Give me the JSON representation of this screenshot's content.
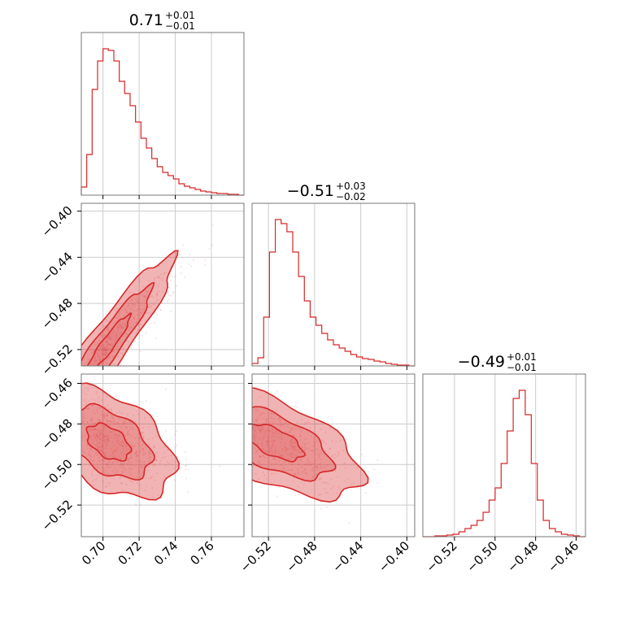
{
  "chart_data": {
    "type": "corner",
    "color": "#d62728",
    "grid": true,
    "parameters": [
      {
        "title_value": "0.71",
        "title_plus": "+0.01",
        "title_minus": "−0.01",
        "range": [
          0.688,
          0.778
        ]
      },
      {
        "title_value": "−0.51",
        "title_plus": "+0.03",
        "title_minus": "−0.02",
        "range": [
          -0.5342,
          -0.3932
        ]
      },
      {
        "title_value": "−0.49",
        "title_plus": "+0.01",
        "title_minus": "−0.01",
        "range": [
          -0.5356,
          -0.4554
        ]
      }
    ],
    "ticks": [
      {
        "values": [
          0.7,
          0.72,
          0.74,
          0.76
        ],
        "labels": [
          "0.70",
          "0.72",
          "0.74",
          "0.76"
        ]
      },
      {
        "values": [
          -0.52,
          -0.48,
          -0.44,
          -0.4
        ],
        "labels": [
          "−0.52",
          "−0.48",
          "−0.44",
          "−0.40"
        ]
      },
      {
        "values": [
          -0.52,
          -0.5,
          -0.48,
          -0.46
        ],
        "labels": [
          "−0.52",
          "−0.50",
          "−0.48",
          "−0.46"
        ]
      }
    ],
    "histograms": [
      {
        "x": [
          0.688,
          0.691,
          0.694,
          0.697,
          0.7,
          0.703,
          0.706,
          0.709,
          0.712,
          0.715,
          0.718,
          0.721,
          0.724,
          0.727,
          0.73,
          0.733,
          0.736,
          0.739,
          0.742,
          0.745,
          0.748,
          0.751,
          0.754,
          0.757,
          0.76,
          0.763,
          0.766,
          0.769,
          0.772,
          0.775
        ],
        "counts": [
          10,
          50,
          130,
          165,
          180,
          178,
          165,
          140,
          125,
          110,
          90,
          70,
          58,
          45,
          35,
          28,
          24,
          20,
          14,
          11,
          9,
          7,
          5,
          4,
          3,
          2,
          2,
          1,
          1,
          0
        ]
      },
      {
        "x": [
          -0.534,
          -0.529,
          -0.524,
          -0.519,
          -0.514,
          -0.509,
          -0.504,
          -0.499,
          -0.494,
          -0.489,
          -0.484,
          -0.479,
          -0.474,
          -0.469,
          -0.464,
          -0.459,
          -0.454,
          -0.449,
          -0.444,
          -0.439,
          -0.434,
          -0.429,
          -0.424,
          -0.419,
          -0.414,
          -0.409,
          -0.404,
          -0.399
        ],
        "counts": [
          3,
          10,
          60,
          140,
          180,
          175,
          165,
          140,
          110,
          80,
          60,
          50,
          40,
          32,
          26,
          22,
          18,
          14,
          11,
          9,
          8,
          6,
          5,
          3,
          2,
          1,
          1,
          0
        ]
      },
      {
        "x": [
          -0.535,
          -0.532,
          -0.529,
          -0.526,
          -0.523,
          -0.52,
          -0.517,
          -0.514,
          -0.511,
          -0.508,
          -0.505,
          -0.502,
          -0.499,
          -0.496,
          -0.493,
          -0.49,
          -0.487,
          -0.484,
          -0.481,
          -0.478,
          -0.475,
          -0.472,
          -0.469,
          -0.466,
          -0.463,
          -0.46,
          -0.457
        ],
        "counts": [
          0,
          0,
          1,
          1,
          2,
          3,
          6,
          10,
          14,
          20,
          30,
          45,
          60,
          90,
          130,
          170,
          180,
          150,
          90,
          45,
          20,
          10,
          6,
          3,
          2,
          1,
          0
        ]
      }
    ],
    "correlations": {
      "0_1": 0.93,
      "0_2": -0.45,
      "1_2": -0.6
    },
    "contour_levels": [
      0.39,
      0.86,
      0.99
    ]
  }
}
